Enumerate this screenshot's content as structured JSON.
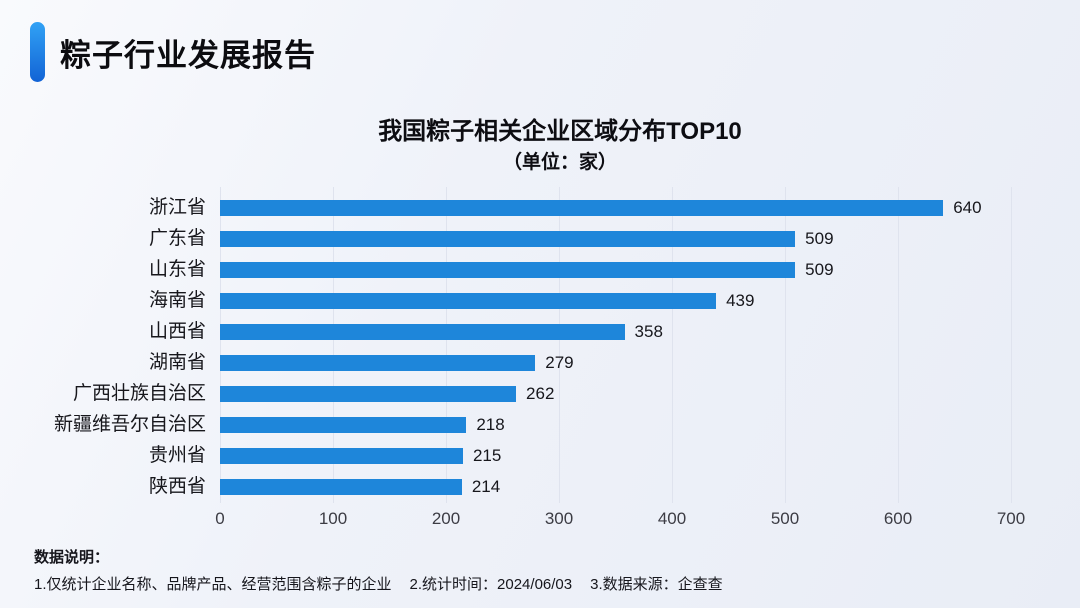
{
  "header": {
    "title": "粽子行业发展报告"
  },
  "chart": {
    "title": "我国粽子相关企业区域分布TOP10",
    "unit_label": "（单位：家）"
  },
  "chart_data": {
    "type": "bar",
    "orientation": "horizontal",
    "title": "我国粽子相关企业区域分布TOP10",
    "subtitle": "（单位：家）",
    "unit": "家",
    "categories": [
      "浙江省",
      "广东省",
      "山东省",
      "海南省",
      "山西省",
      "湖南省",
      "广西壮族自治区",
      "新疆维吾尔自治区",
      "贵州省",
      "陕西省"
    ],
    "values": [
      640,
      509,
      509,
      439,
      358,
      279,
      262,
      218,
      215,
      214
    ],
    "xlim": [
      0,
      700
    ],
    "x_ticks": [
      0,
      100,
      200,
      300,
      400,
      500,
      600,
      700
    ],
    "grid": true,
    "value_labels": true,
    "legend": false
  },
  "footer": {
    "heading": "数据说明：",
    "notes": [
      "1.仅统计企业名称、品牌产品、经营范围含粽子的企业",
      "2.统计时间：2024/06/03",
      "3.数据来源：企查查"
    ]
  },
  "theme": {
    "bar_color": "#1e86da",
    "accent_top": "#31a2f5",
    "accent_bottom": "#1263d5",
    "grid_color": "#dfe3ee",
    "background": "#eef1f8",
    "text_color": "#17171c"
  }
}
